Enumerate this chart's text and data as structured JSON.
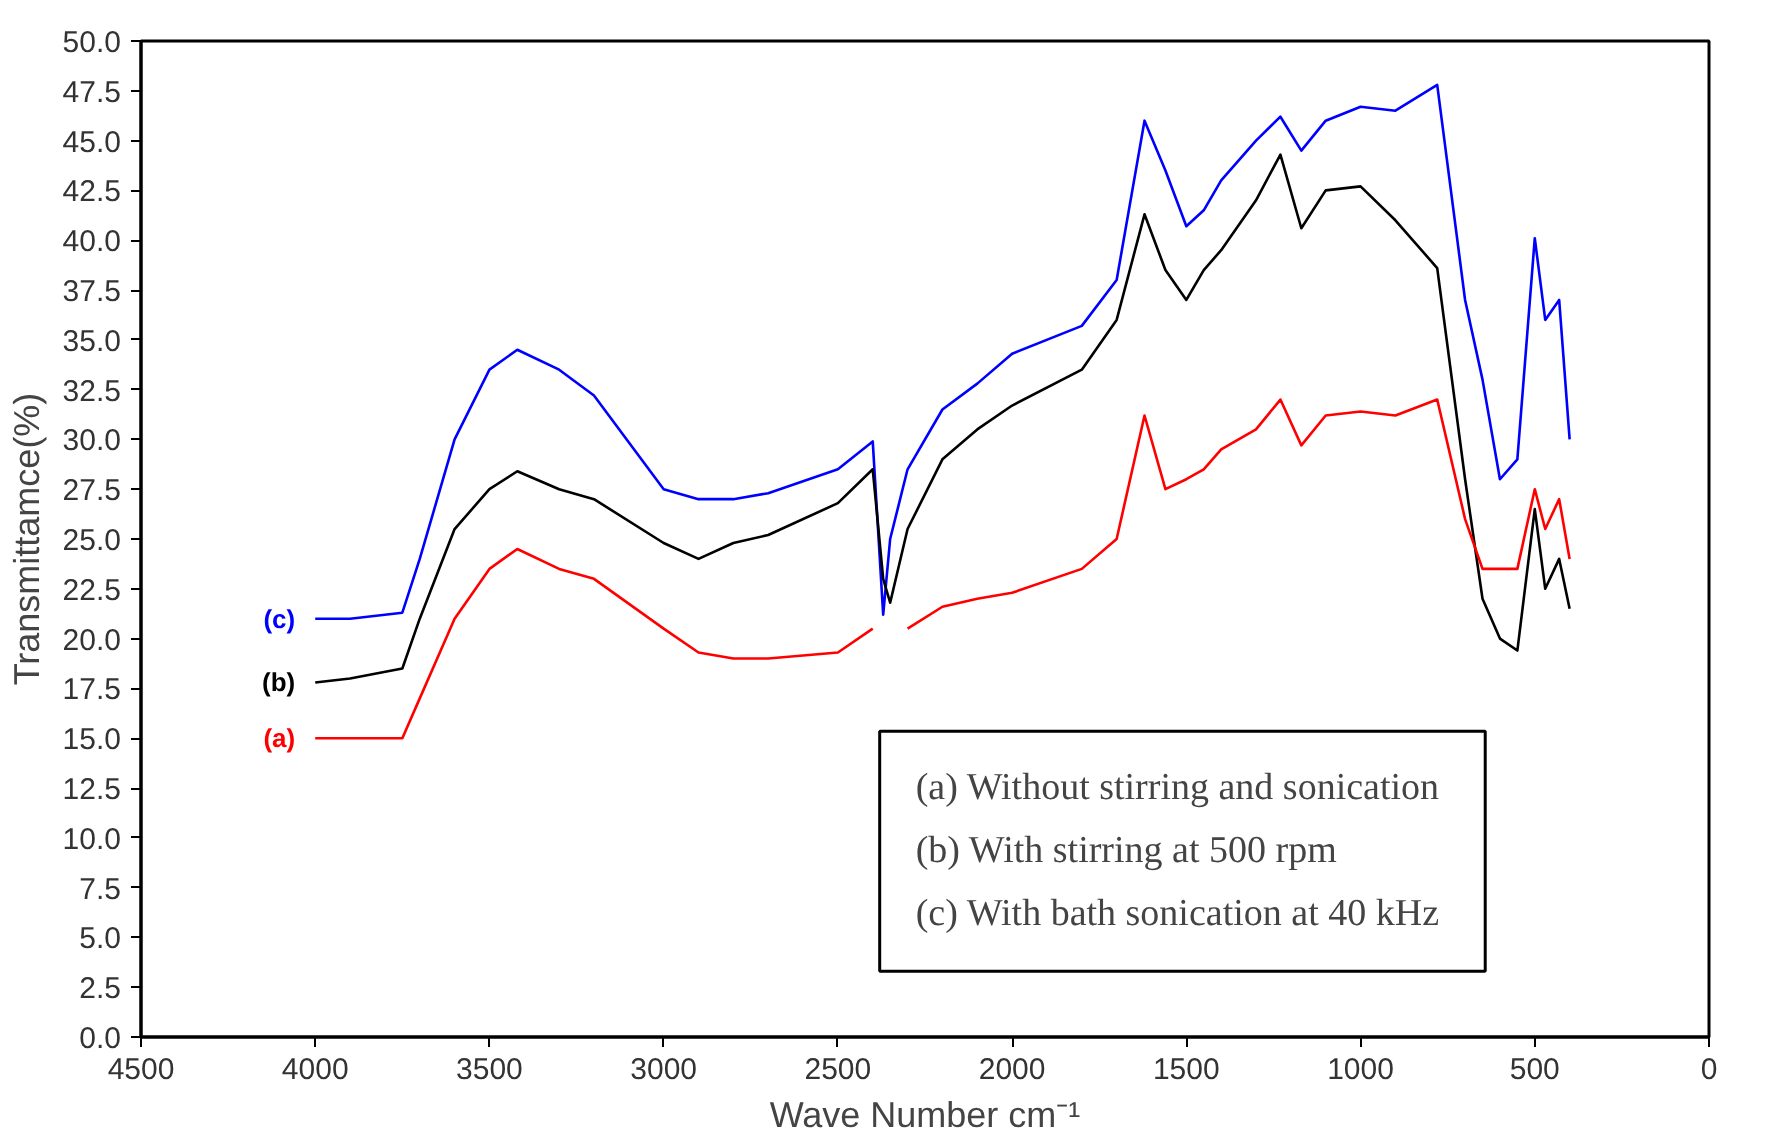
{
  "chart_data": {
    "type": "line",
    "xlabel": "Wave Number cm⁻¹",
    "ylabel": "Transmittamce(%)",
    "xlim": [
      4500,
      0
    ],
    "xticks": [
      4500,
      4000,
      3500,
      3000,
      2500,
      2000,
      1500,
      1000,
      500,
      0
    ],
    "ylim": [
      0,
      50
    ],
    "yticks": [
      {
        "value": 0,
        "label": "0.0"
      },
      {
        "value": 2.5,
        "label": "2.5"
      },
      {
        "value": 5,
        "label": "5.0"
      },
      {
        "value": 7.5,
        "label": "7.5"
      },
      {
        "value": 10,
        "label": "10.0"
      },
      {
        "value": 12.5,
        "label": "12.5"
      },
      {
        "value": 15,
        "label": "15.0"
      },
      {
        "value": 17.5,
        "label": "17.5"
      },
      {
        "value": 20,
        "label": "20.0"
      },
      {
        "value": 22.5,
        "label": "22.5"
      },
      {
        "value": 25,
        "label": "25.0"
      },
      {
        "value": 27.5,
        "label": "27.5"
      },
      {
        "value": 30,
        "label": "30.0"
      },
      {
        "value": 32.5,
        "label": "32.5"
      },
      {
        "value": 35,
        "label": "35.0"
      },
      {
        "value": 37.5,
        "label": "37.5"
      },
      {
        "value": 40,
        "label": "40.0"
      },
      {
        "value": 42.5,
        "label": "42.5"
      },
      {
        "value": 45,
        "label": "45.0"
      },
      {
        "value": 47.5,
        "label": "47.5"
      },
      {
        "value": 50,
        "label": "50.0"
      }
    ],
    "x": [
      4000,
      3900,
      3750,
      3700,
      3600,
      3500,
      3420,
      3300,
      3200,
      3000,
      2900,
      2800,
      2700,
      2500,
      2400,
      2370,
      2350,
      2300,
      2200,
      2100,
      2000,
      1800,
      1700,
      1620,
      1560,
      1500,
      1450,
      1400,
      1300,
      1230,
      1170,
      1100,
      1000,
      900,
      780,
      700,
      650,
      600,
      550,
      500,
      470,
      430,
      400
    ],
    "series": [
      {
        "name": "(c)",
        "color": "#0000ff",
        "values": [
          21.0,
          21.0,
          21.3,
          24,
          30,
          33.5,
          34.5,
          33.5,
          32.2,
          27.5,
          27.0,
          27.0,
          27.3,
          28.5,
          29.9,
          21.2,
          25,
          28.5,
          31.5,
          32.8,
          34.3,
          35.7,
          38,
          46,
          43.5,
          40.7,
          41.5,
          43,
          45,
          46.2,
          44.5,
          46,
          46.7,
          46.5,
          47.8,
          37,
          33,
          28,
          29,
          40.1,
          36,
          37,
          30
        ]
      },
      {
        "name": "(b)",
        "color": "#000000",
        "values": [
          17.8,
          18.0,
          18.5,
          21,
          25.5,
          27.5,
          28.4,
          27.5,
          27,
          24.8,
          24,
          24.8,
          25.2,
          26.8,
          28.5,
          23,
          21.8,
          25.5,
          29,
          30.5,
          31.7,
          33.5,
          36,
          41.3,
          38.5,
          37,
          38.5,
          39.5,
          42,
          44.3,
          40.6,
          42.5,
          42.7,
          41,
          38.6,
          28,
          22,
          20,
          19.4,
          26.5,
          22.5,
          24,
          21.5
        ]
      },
      {
        "name": "(a)",
        "color": "#ff0000",
        "values": [
          15.0,
          15.0,
          15.0,
          17,
          21,
          23.5,
          24.5,
          23.5,
          23,
          20.5,
          19.3,
          19.0,
          19.0,
          19.3,
          20.5,
          null,
          null,
          20.5,
          21.6,
          22,
          22.3,
          23.5,
          25,
          31.2,
          27.5,
          28,
          28.5,
          29.5,
          30.5,
          32.0,
          29.7,
          31.2,
          31.4,
          31.2,
          32,
          26,
          23.5,
          23.5,
          23.5,
          27.5,
          25.5,
          27,
          24
        ]
      }
    ],
    "annotations": [
      "(a)  Without stirring and sonication",
      "(b)  With stirring at 500 rpm",
      "(c)  With bath sonication at 40 kHz"
    ],
    "grid": false
  }
}
